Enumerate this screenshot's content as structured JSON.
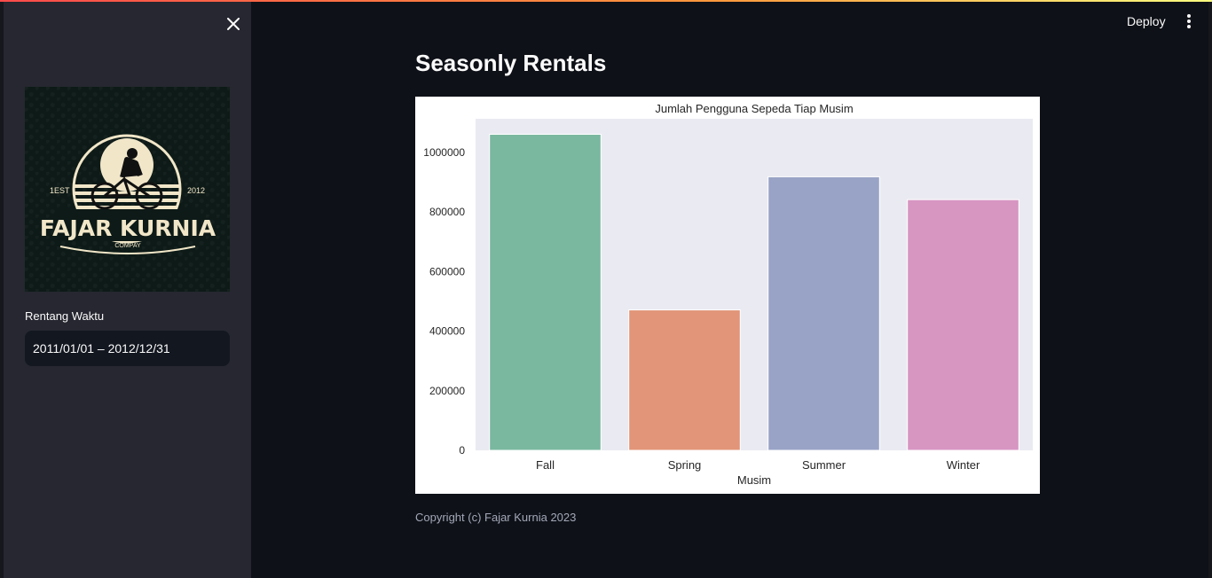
{
  "sidebar": {
    "close_icon": "close-icon",
    "logo": {
      "est_left": "1EST",
      "est_right": "2012",
      "brand": "FAJAR KURNIA",
      "sub": "COMPAY"
    },
    "date_label": "Rentang Waktu",
    "date_value": "2011/01/01 – 2012/12/31"
  },
  "header": {
    "deploy_label": "Deploy",
    "menu_icon": "more-vertical-icon",
    "accent_gradient": [
      "#ff4b4b",
      "#fffd80"
    ]
  },
  "main": {
    "title": "Seasonly Rentals",
    "footer": "Copyright (c) Fajar Kurnia 2023"
  },
  "chart_data": {
    "type": "bar",
    "title": "Jumlah Pengguna Sepeda Tiap Musim",
    "xlabel": "Musim",
    "ylabel": "",
    "categories": [
      "Fall",
      "Spring",
      "Summer",
      "Winter"
    ],
    "values": [
      1061129,
      471348,
      918589,
      841613
    ],
    "colors": [
      "#7ab8a0",
      "#e29578",
      "#99a3c6",
      "#d795c2"
    ],
    "ylim": [
      0,
      1100000
    ],
    "yticks": [
      0,
      200000,
      400000,
      600000,
      800000,
      1000000
    ],
    "grid": false,
    "legend": "none"
  }
}
